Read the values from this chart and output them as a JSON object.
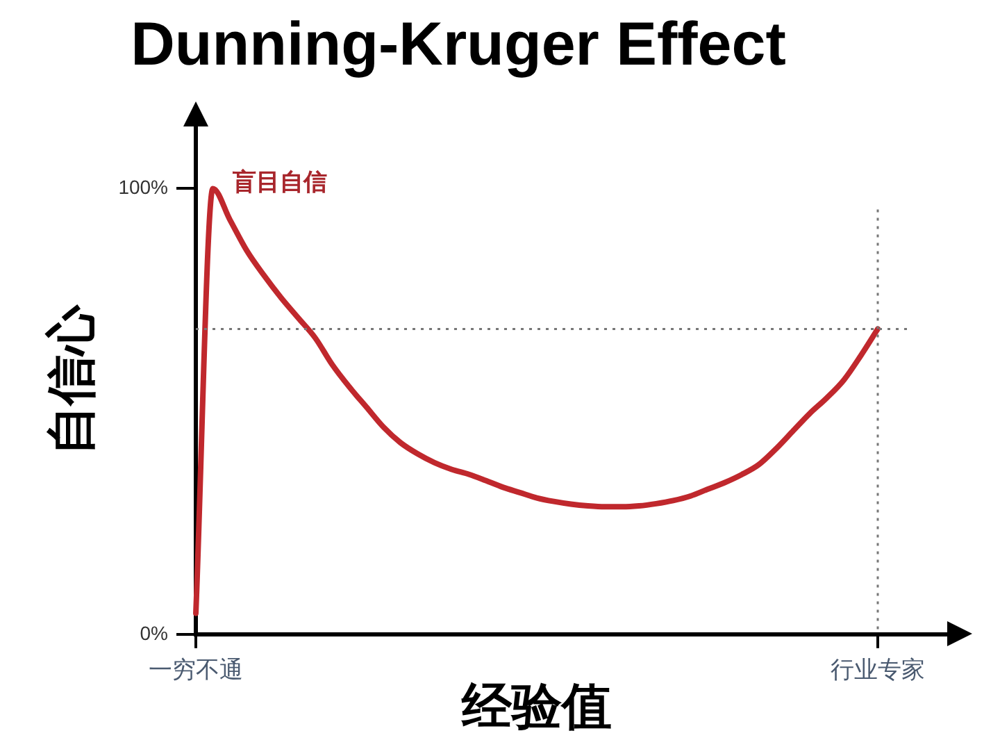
{
  "chart_data": {
    "type": "line",
    "title": "Dunning-Kruger Effect",
    "xlabel": "经验值",
    "ylabel": "自信心",
    "categories": [
      "一穷不通",
      null,
      null,
      null,
      null,
      null,
      null,
      null,
      null,
      null,
      null,
      null,
      null,
      null,
      null,
      null,
      null,
      null,
      null,
      null,
      null,
      null,
      null,
      null,
      null,
      null,
      null,
      null,
      null,
      null,
      null,
      null,
      null,
      null,
      null,
      null,
      null,
      null,
      null,
      null,
      "行业专家"
    ],
    "series": [
      {
        "color": "#c0282d",
        "values": [
          4.7,
          100,
          93,
          86,
          80.5,
          75.5,
          71,
          66.5,
          60.5,
          55.5,
          51,
          46.5,
          43,
          40.5,
          38.5,
          37,
          35.9,
          34.5,
          33,
          31.8,
          30.6,
          29.8,
          29.2,
          28.8,
          28.6,
          28.6,
          28.8,
          29.3,
          30,
          31,
          32.5,
          34,
          35.8,
          38,
          41.5,
          45.5,
          49.5,
          53,
          57,
          62.5,
          68.5
        ]
      }
    ],
    "ylim": [
      0,
      114
    ],
    "yticks": [
      {
        "value": 0,
        "label": "0%"
      },
      {
        "value": 100,
        "label": "100%"
      }
    ],
    "annotations": [
      "盲目自信"
    ],
    "ref_lines": [
      {
        "axis": "y",
        "value": 68.5,
        "color": "#777777",
        "line_style": "dotted"
      },
      {
        "axis": "x",
        "value": "行业专家",
        "color": "#777777",
        "line_style": "dotted"
      }
    ],
    "grid": false,
    "legend": false,
    "marker": "none",
    "line_style": "solid"
  }
}
